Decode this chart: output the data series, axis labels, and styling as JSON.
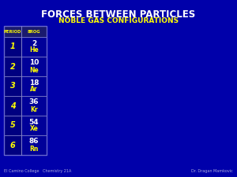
{
  "title": "FORCES BETWEEN PARTICLES",
  "subtitle": "NOBLE GAS CONFIGURATIONS",
  "bg_color": "#0000AA",
  "title_color": "#FFFFFF",
  "subtitle_color": "#FFFF00",
  "header_labels": [
    "PERIOD",
    "8ROG"
  ],
  "periods": [
    "1",
    "2",
    "3",
    "4",
    "5",
    "6"
  ],
  "atomic_numbers": [
    "2",
    "10",
    "18",
    "36",
    "54",
    "86"
  ],
  "symbols": [
    "He",
    "Ne",
    "Ar",
    "Kr",
    "Xe",
    "Rn"
  ],
  "period_col_color": "#000080",
  "element_col_color": "#000080",
  "header_bg": "#4444AA",
  "cell_border_color": "#8888CC",
  "period_text_color": "#FFFF00",
  "number_text_color": "#FFFFFF",
  "symbol_text_color": "#FFFF00",
  "footer_left": "El Camino College   Chemistry 21A",
  "footer_right": "Dr. Dragan Mamkovic",
  "footer_color": "#AAAADD"
}
